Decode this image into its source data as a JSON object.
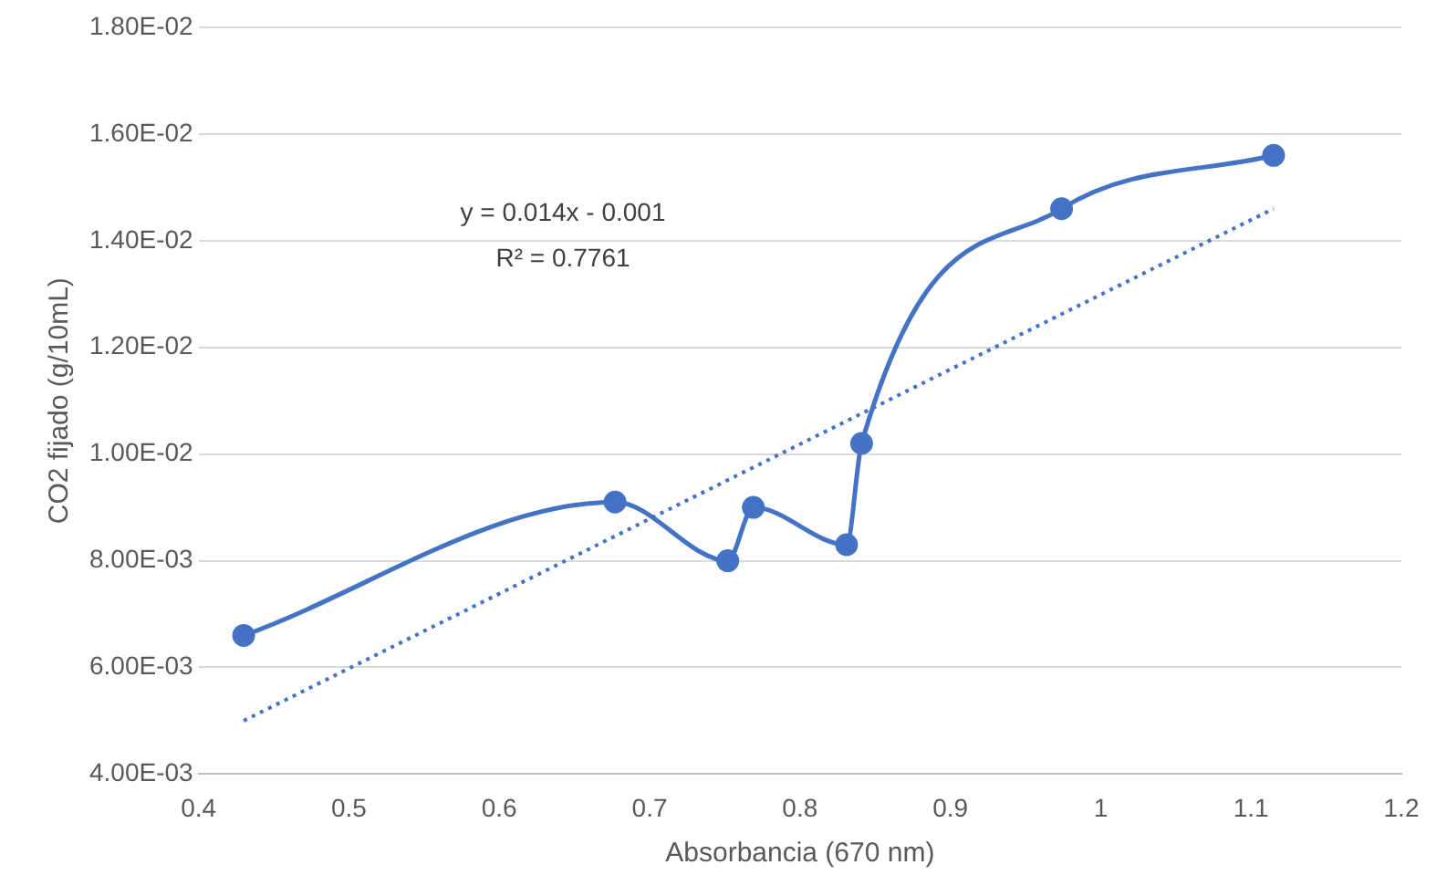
{
  "chart_data": {
    "type": "line",
    "xlabel": "Absorbancia (670 nm)",
    "ylabel": "CO2 fijado (g/10mL)",
    "annotations": [
      "y = 0.014x - 0.001",
      "R² = 0.7761"
    ],
    "series": [
      {
        "color": "#4472c4",
        "marker": "circle",
        "line_style": "solid",
        "x": [
          0.43,
          0.677,
          0.752,
          0.769,
          0.831,
          0.841,
          0.974,
          1.115
        ],
        "values": [
          0.0066,
          0.0091,
          0.008,
          0.009,
          0.0083,
          0.0102,
          0.0146,
          0.0156
        ]
      },
      {
        "color": "#4472c4",
        "marker": "none",
        "line_style": "dotted",
        "x": [
          0.43,
          1.115
        ],
        "values": [
          0.005,
          0.0146
        ]
      }
    ],
    "xlim": [
      0.4,
      1.2
    ],
    "xticks": [
      0.4,
      0.5,
      0.6,
      0.7,
      0.8,
      0.9,
      1,
      1.1,
      1.2
    ],
    "ylim": [
      0.004,
      0.018
    ],
    "yticks": [
      {
        "value": 0.004,
        "label": "4.00E-03"
      },
      {
        "value": 0.006,
        "label": "6.00E-03"
      },
      {
        "value": 0.008,
        "label": "8.00E-03"
      },
      {
        "value": 0.01,
        "label": "1.00E-02"
      },
      {
        "value": 0.012,
        "label": "1.20E-02"
      },
      {
        "value": 0.014,
        "label": "1.40E-02"
      },
      {
        "value": 0.016,
        "label": "1.60E-02"
      },
      {
        "value": 0.018,
        "label": "1.80E-02"
      }
    ],
    "grid": "y",
    "legend": false
  }
}
